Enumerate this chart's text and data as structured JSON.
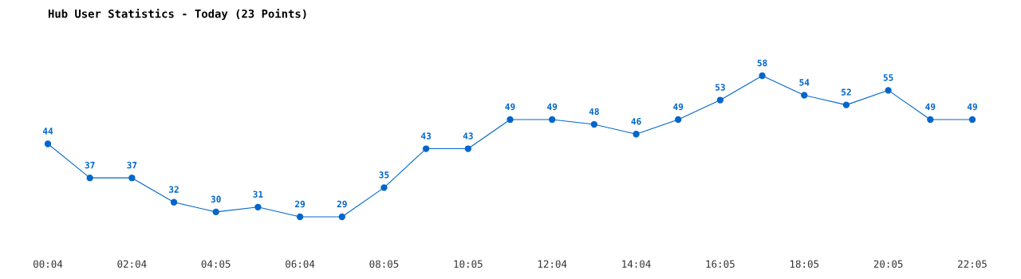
{
  "chart_data": {
    "type": "line",
    "title": "Hub User Statistics - Today (23 Points)",
    "categories": [
      "00:04",
      null,
      "02:04",
      null,
      "04:05",
      null,
      "06:04",
      null,
      "08:05",
      null,
      "10:05",
      null,
      "12:04",
      null,
      "14:04",
      null,
      "16:05",
      null,
      "18:05",
      null,
      "20:05",
      null,
      "22:05"
    ],
    "series": [
      {
        "color": "#0066cc",
        "values": [
          44,
          37,
          37,
          32,
          30,
          31,
          29,
          29,
          35,
          43,
          43,
          49,
          49,
          48,
          46,
          49,
          53,
          58,
          54,
          52,
          55,
          49,
          49
        ]
      }
    ],
    "data_labels": true,
    "marker": "circle",
    "line_style": "solid",
    "grid": false,
    "tick_labels": "x"
  }
}
